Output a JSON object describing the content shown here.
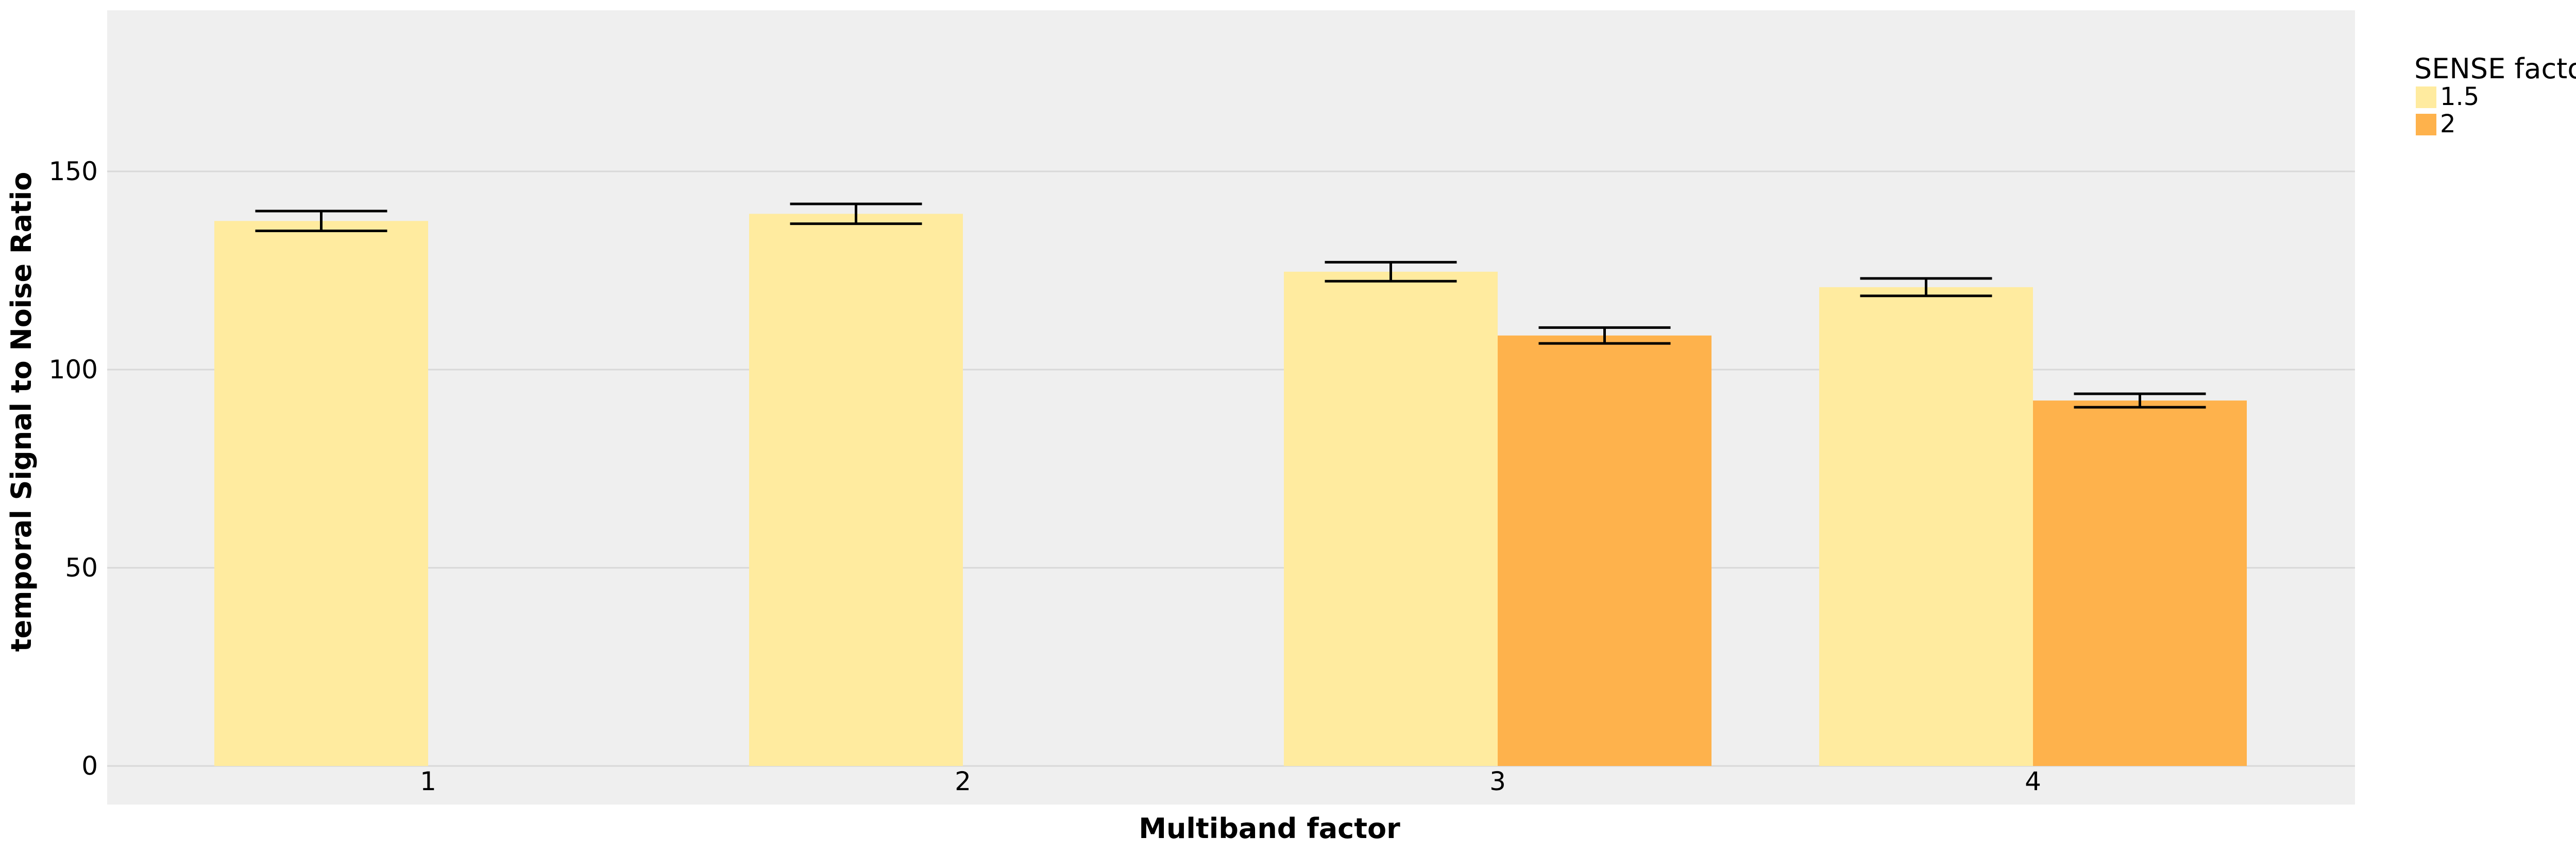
{
  "chart_data": {
    "type": "bar",
    "xlabel": "Multiband factor",
    "ylabel": "temporal Signal to Noise Ratio",
    "categories": [
      "1",
      "2",
      "3",
      "4"
    ],
    "ylim": [
      0,
      190
    ],
    "yticks": [
      0,
      50,
      100,
      150
    ],
    "grid": "horizontal",
    "legend": {
      "title": "SENSE factor",
      "placement": "right"
    },
    "series": [
      {
        "name": "1.5",
        "color": "#FFEB9F",
        "values": [
          137.5,
          139.3,
          124.7,
          120.8
        ],
        "error_low": [
          135.0,
          136.8,
          122.3,
          118.6
        ],
        "error_high": [
          140.0,
          141.8,
          127.1,
          123.0
        ]
      },
      {
        "name": "2",
        "color": "#FEB24C",
        "values": [
          null,
          null,
          108.6,
          92.2
        ],
        "error_low": [
          null,
          null,
          106.6,
          90.5
        ],
        "error_high": [
          null,
          null,
          110.6,
          93.9
        ]
      }
    ],
    "panel_color": "#EFEFEF",
    "grid_color": "#D8D8D8"
  }
}
